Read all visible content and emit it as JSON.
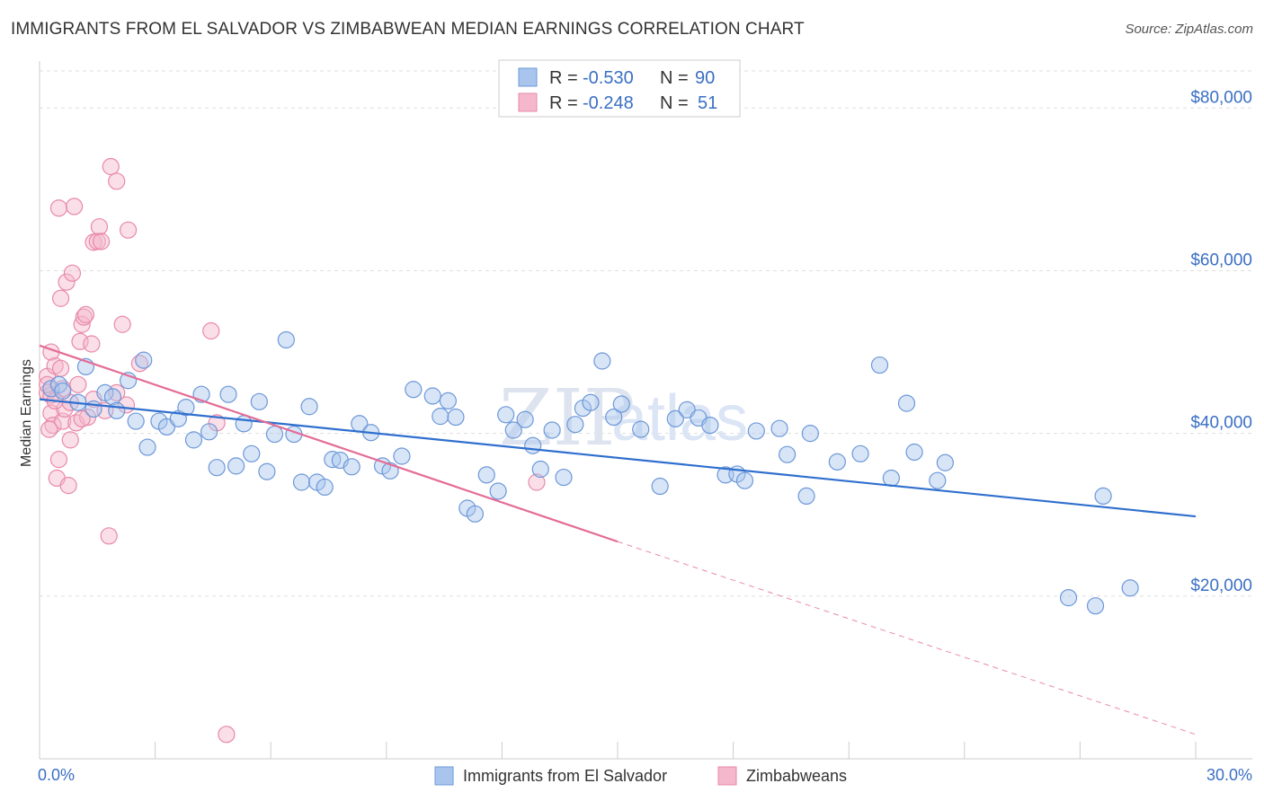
{
  "title": "IMMIGRANTS FROM EL SALVADOR VS ZIMBABWEAN MEDIAN EARNINGS CORRELATION CHART",
  "source": "Source: ZipAtlas.com",
  "watermark": {
    "part1": "ZIP",
    "part2": "atlas"
  },
  "colors": {
    "blue_fill": "#a9c5ee",
    "blue_stroke": "#6c98d8",
    "blue_line": "#2f6fce",
    "pink_fill": "#f5b7cb",
    "pink_stroke": "#e889a8",
    "pink_line": "#e46c97",
    "grid": "#dddddd",
    "axis_text": "#3a6fc4"
  },
  "legend": {
    "rows": [
      {
        "r_label": "R =",
        "r_value": "-0.530",
        "n_label": "N =",
        "n_value": "90"
      },
      {
        "r_label": "R =",
        "r_value": "-0.248",
        "n_label": "N =",
        "n_value": "51"
      }
    ]
  },
  "bottom_legend": [
    "Immigrants from El Salvador",
    "Zimbabweans"
  ],
  "chart_data": {
    "type": "scatter",
    "ylabel": "Median Earnings",
    "xlim": [
      0,
      30
    ],
    "ylim": [
      0,
      85000
    ],
    "x_tick_labels": [
      "0.0%",
      "30.0%"
    ],
    "y_ticks": [
      20000,
      40000,
      60000,
      80000
    ],
    "y_tick_labels": [
      "$20,000",
      "$40,000",
      "$60,000",
      "$80,000"
    ],
    "series": [
      {
        "name": "Immigrants from El Salvador",
        "points": [
          [
            0.3,
            45500
          ],
          [
            0.5,
            46000
          ],
          [
            0.6,
            45200
          ],
          [
            1.0,
            43800
          ],
          [
            1.2,
            48200
          ],
          [
            1.4,
            43000
          ],
          [
            1.7,
            45000
          ],
          [
            1.9,
            44500
          ],
          [
            2.0,
            42800
          ],
          [
            2.3,
            46500
          ],
          [
            2.5,
            41500
          ],
          [
            2.7,
            49000
          ],
          [
            2.8,
            38300
          ],
          [
            3.1,
            41500
          ],
          [
            3.3,
            40800
          ],
          [
            3.6,
            41800
          ],
          [
            3.8,
            43200
          ],
          [
            4.0,
            39200
          ],
          [
            4.2,
            44800
          ],
          [
            4.4,
            40200
          ],
          [
            4.6,
            35800
          ],
          [
            4.9,
            44800
          ],
          [
            5.1,
            36000
          ],
          [
            5.3,
            41200
          ],
          [
            5.5,
            37500
          ],
          [
            5.7,
            43900
          ],
          [
            5.9,
            35300
          ],
          [
            6.1,
            39900
          ],
          [
            6.4,
            51500
          ],
          [
            6.6,
            39900
          ],
          [
            6.8,
            34000
          ],
          [
            7.0,
            43300
          ],
          [
            7.2,
            34000
          ],
          [
            7.4,
            33400
          ],
          [
            7.6,
            36800
          ],
          [
            7.8,
            36700
          ],
          [
            8.1,
            35900
          ],
          [
            8.3,
            41200
          ],
          [
            8.6,
            40100
          ],
          [
            8.9,
            36000
          ],
          [
            9.1,
            35400
          ],
          [
            9.4,
            37200
          ],
          [
            9.7,
            45400
          ],
          [
            10.2,
            44600
          ],
          [
            10.4,
            42100
          ],
          [
            10.6,
            44000
          ],
          [
            10.8,
            42000
          ],
          [
            11.1,
            30800
          ],
          [
            11.3,
            30100
          ],
          [
            11.6,
            34900
          ],
          [
            11.9,
            32900
          ],
          [
            12.1,
            42300
          ],
          [
            12.3,
            40400
          ],
          [
            12.6,
            41700
          ],
          [
            12.8,
            38500
          ],
          [
            13.0,
            35600
          ],
          [
            13.3,
            40400
          ],
          [
            13.6,
            34600
          ],
          [
            13.9,
            41100
          ],
          [
            14.1,
            43100
          ],
          [
            14.3,
            43800
          ],
          [
            14.6,
            48900
          ],
          [
            14.9,
            42000
          ],
          [
            15.1,
            43600
          ],
          [
            15.6,
            40500
          ],
          [
            16.1,
            33500
          ],
          [
            16.5,
            41800
          ],
          [
            16.8,
            42900
          ],
          [
            17.1,
            41900
          ],
          [
            17.4,
            41000
          ],
          [
            17.8,
            34900
          ],
          [
            18.1,
            35000
          ],
          [
            18.3,
            34200
          ],
          [
            18.6,
            40300
          ],
          [
            19.2,
            40600
          ],
          [
            19.4,
            37400
          ],
          [
            19.9,
            32300
          ],
          [
            20.7,
            36500
          ],
          [
            21.3,
            37500
          ],
          [
            21.8,
            48400
          ],
          [
            22.1,
            34500
          ],
          [
            22.5,
            43700
          ],
          [
            22.7,
            37700
          ],
          [
            23.3,
            34200
          ],
          [
            23.5,
            36400
          ],
          [
            26.7,
            19800
          ],
          [
            27.4,
            18800
          ],
          [
            27.6,
            32300
          ],
          [
            28.3,
            21000
          ],
          [
            20.0,
            40000
          ]
        ],
        "trend": {
          "x0": 0,
          "y0": 44200,
          "x1": 30,
          "y1": 29800
        }
      },
      {
        "name": "Zimbabweans",
        "points": [
          [
            0.2,
            47000
          ],
          [
            0.2,
            45000
          ],
          [
            0.3,
            50000
          ],
          [
            0.3,
            42500
          ],
          [
            0.35,
            41000
          ],
          [
            0.4,
            48300
          ],
          [
            0.45,
            34500
          ],
          [
            0.5,
            67700
          ],
          [
            0.55,
            56600
          ],
          [
            0.6,
            41500
          ],
          [
            0.65,
            43000
          ],
          [
            0.7,
            58600
          ],
          [
            0.75,
            33600
          ],
          [
            0.8,
            39200
          ],
          [
            0.85,
            59700
          ],
          [
            0.9,
            67900
          ],
          [
            0.95,
            41300
          ],
          [
            1.05,
            51300
          ],
          [
            1.1,
            53400
          ],
          [
            1.15,
            54300
          ],
          [
            1.2,
            54600
          ],
          [
            1.25,
            42000
          ],
          [
            1.35,
            51000
          ],
          [
            1.4,
            63500
          ],
          [
            1.5,
            63600
          ],
          [
            1.55,
            65400
          ],
          [
            1.6,
            63600
          ],
          [
            1.8,
            27400
          ],
          [
            1.85,
            72800
          ],
          [
            2.0,
            71000
          ],
          [
            2.15,
            53400
          ],
          [
            2.25,
            43500
          ],
          [
            2.3,
            65000
          ],
          [
            2.6,
            48600
          ],
          [
            4.45,
            52600
          ],
          [
            4.6,
            41300
          ],
          [
            4.85,
            3000
          ],
          [
            12.9,
            34000
          ],
          [
            0.5,
            36800
          ],
          [
            0.3,
            44700
          ],
          [
            0.2,
            46000
          ],
          [
            0.6,
            45500
          ],
          [
            1.1,
            41800
          ],
          [
            0.4,
            44000
          ],
          [
            0.8,
            43800
          ],
          [
            1.0,
            46000
          ],
          [
            0.25,
            40500
          ],
          [
            0.55,
            48000
          ],
          [
            1.4,
            44200
          ],
          [
            2.0,
            45000
          ],
          [
            1.7,
            42800
          ]
        ],
        "trend": {
          "x0": 0,
          "y0": 50800,
          "x1": 15,
          "y1": 26700
        },
        "trend_dashed": {
          "x0": 15,
          "y0": 26700,
          "x1": 30,
          "y1": 3000
        }
      }
    ]
  }
}
